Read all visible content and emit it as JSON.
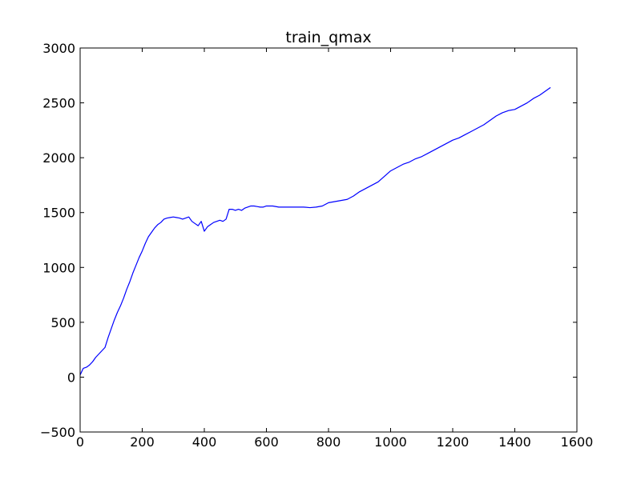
{
  "chart_data": {
    "type": "line",
    "title": "train_qmax",
    "xlabel": "",
    "ylabel": "",
    "xlim": [
      0,
      1600
    ],
    "ylim": [
      -500,
      3000
    ],
    "xticks": [
      0,
      200,
      400,
      600,
      800,
      1000,
      1200,
      1400,
      1600
    ],
    "yticks": [
      -500,
      0,
      500,
      1000,
      1500,
      2000,
      2500,
      3000
    ],
    "xtick_labels": [
      "0",
      "200",
      "400",
      "600",
      "800",
      "1000",
      "1200",
      "1400",
      "1600"
    ],
    "ytick_labels": [
      "−500",
      "0",
      "500",
      "1000",
      "1500",
      "2000",
      "2500",
      "3000"
    ],
    "grid": false,
    "legend": "none",
    "line_color": "#0000ff",
    "series": [
      {
        "x": [
          0,
          10,
          20,
          30,
          40,
          50,
          60,
          70,
          80,
          90,
          100,
          110,
          120,
          130,
          140,
          150,
          160,
          170,
          180,
          190,
          200,
          210,
          220,
          230,
          240,
          250,
          260,
          270,
          280,
          290,
          300,
          310,
          320,
          330,
          340,
          350,
          360,
          370,
          380,
          390,
          400,
          410,
          420,
          430,
          440,
          450,
          460,
          470,
          480,
          490,
          500,
          510,
          520,
          530,
          540,
          550,
          560,
          570,
          580,
          590,
          600,
          620,
          640,
          660,
          680,
          700,
          720,
          740,
          760,
          780,
          800,
          820,
          840,
          860,
          880,
          900,
          920,
          940,
          960,
          980,
          1000,
          1020,
          1040,
          1060,
          1080,
          1100,
          1120,
          1140,
          1160,
          1180,
          1200,
          1220,
          1240,
          1260,
          1280,
          1300,
          1320,
          1340,
          1360,
          1380,
          1400,
          1420,
          1440,
          1460,
          1480,
          1500,
          1515
        ],
        "y": [
          20,
          80,
          90,
          110,
          140,
          180,
          210,
          240,
          270,
          360,
          440,
          520,
          590,
          650,
          720,
          800,
          870,
          950,
          1020,
          1090,
          1150,
          1220,
          1280,
          1320,
          1360,
          1390,
          1410,
          1440,
          1450,
          1455,
          1460,
          1455,
          1450,
          1440,
          1450,
          1460,
          1420,
          1400,
          1380,
          1420,
          1330,
          1370,
          1390,
          1410,
          1420,
          1430,
          1420,
          1440,
          1530,
          1530,
          1520,
          1530,
          1520,
          1540,
          1550,
          1560,
          1560,
          1555,
          1550,
          1550,
          1560,
          1560,
          1550,
          1550,
          1550,
          1550,
          1550,
          1545,
          1550,
          1560,
          1590,
          1600,
          1610,
          1620,
          1650,
          1690,
          1720,
          1750,
          1780,
          1830,
          1880,
          1910,
          1940,
          1960,
          1990,
          2010,
          2040,
          2070,
          2100,
          2130,
          2160,
          2180,
          2210,
          2240,
          2270,
          2300,
          2340,
          2380,
          2410,
          2430,
          2440,
          2470,
          2500,
          2540,
          2570,
          2610,
          2640
        ]
      }
    ]
  }
}
